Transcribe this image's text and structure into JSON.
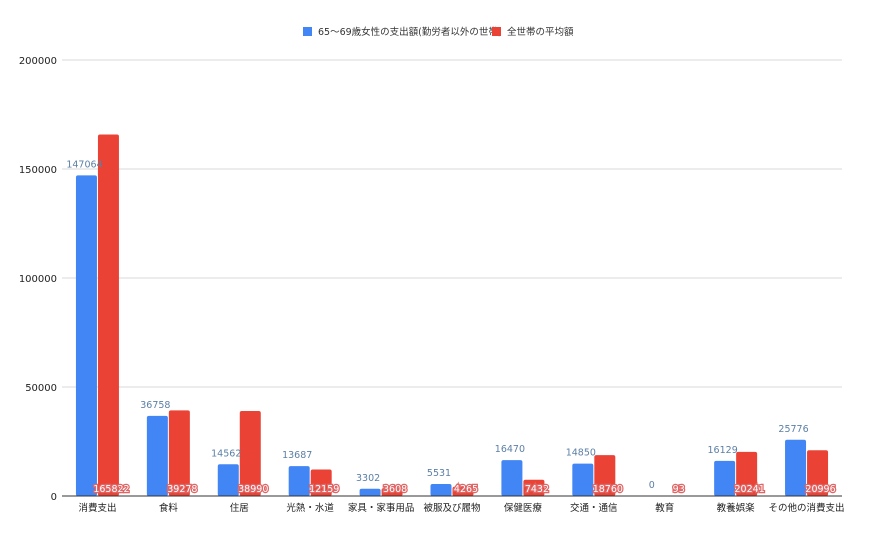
{
  "chart_data": {
    "type": "bar",
    "title": "",
    "xlabel": "",
    "ylabel": "",
    "ylim": [
      0,
      200000
    ],
    "yticks": [
      0,
      50000,
      100000,
      150000,
      200000
    ],
    "grid": true,
    "legend_position": "top",
    "categories": [
      "消費支出",
      "食料",
      "住居",
      "光熱・水道",
      "家具・家事用品",
      "被服及び履物",
      "保健医療",
      "交通・通信",
      "教育",
      "教養娯楽",
      "その他の消費支出"
    ],
    "series": [
      {
        "name": "65～69歳女性の支出額(勤労者以外の世帯)",
        "color": "#4285f4",
        "values": [
          147064,
          36758,
          14562,
          13687,
          3302,
          5531,
          16470,
          14850,
          0,
          16129,
          25776
        ]
      },
      {
        "name": "全世帯の平均額",
        "color": "#ea4335",
        "values": [
          165822,
          39278,
          38990,
          12159,
          3608,
          4265,
          7432,
          18760,
          93,
          20241,
          20996
        ]
      }
    ]
  }
}
